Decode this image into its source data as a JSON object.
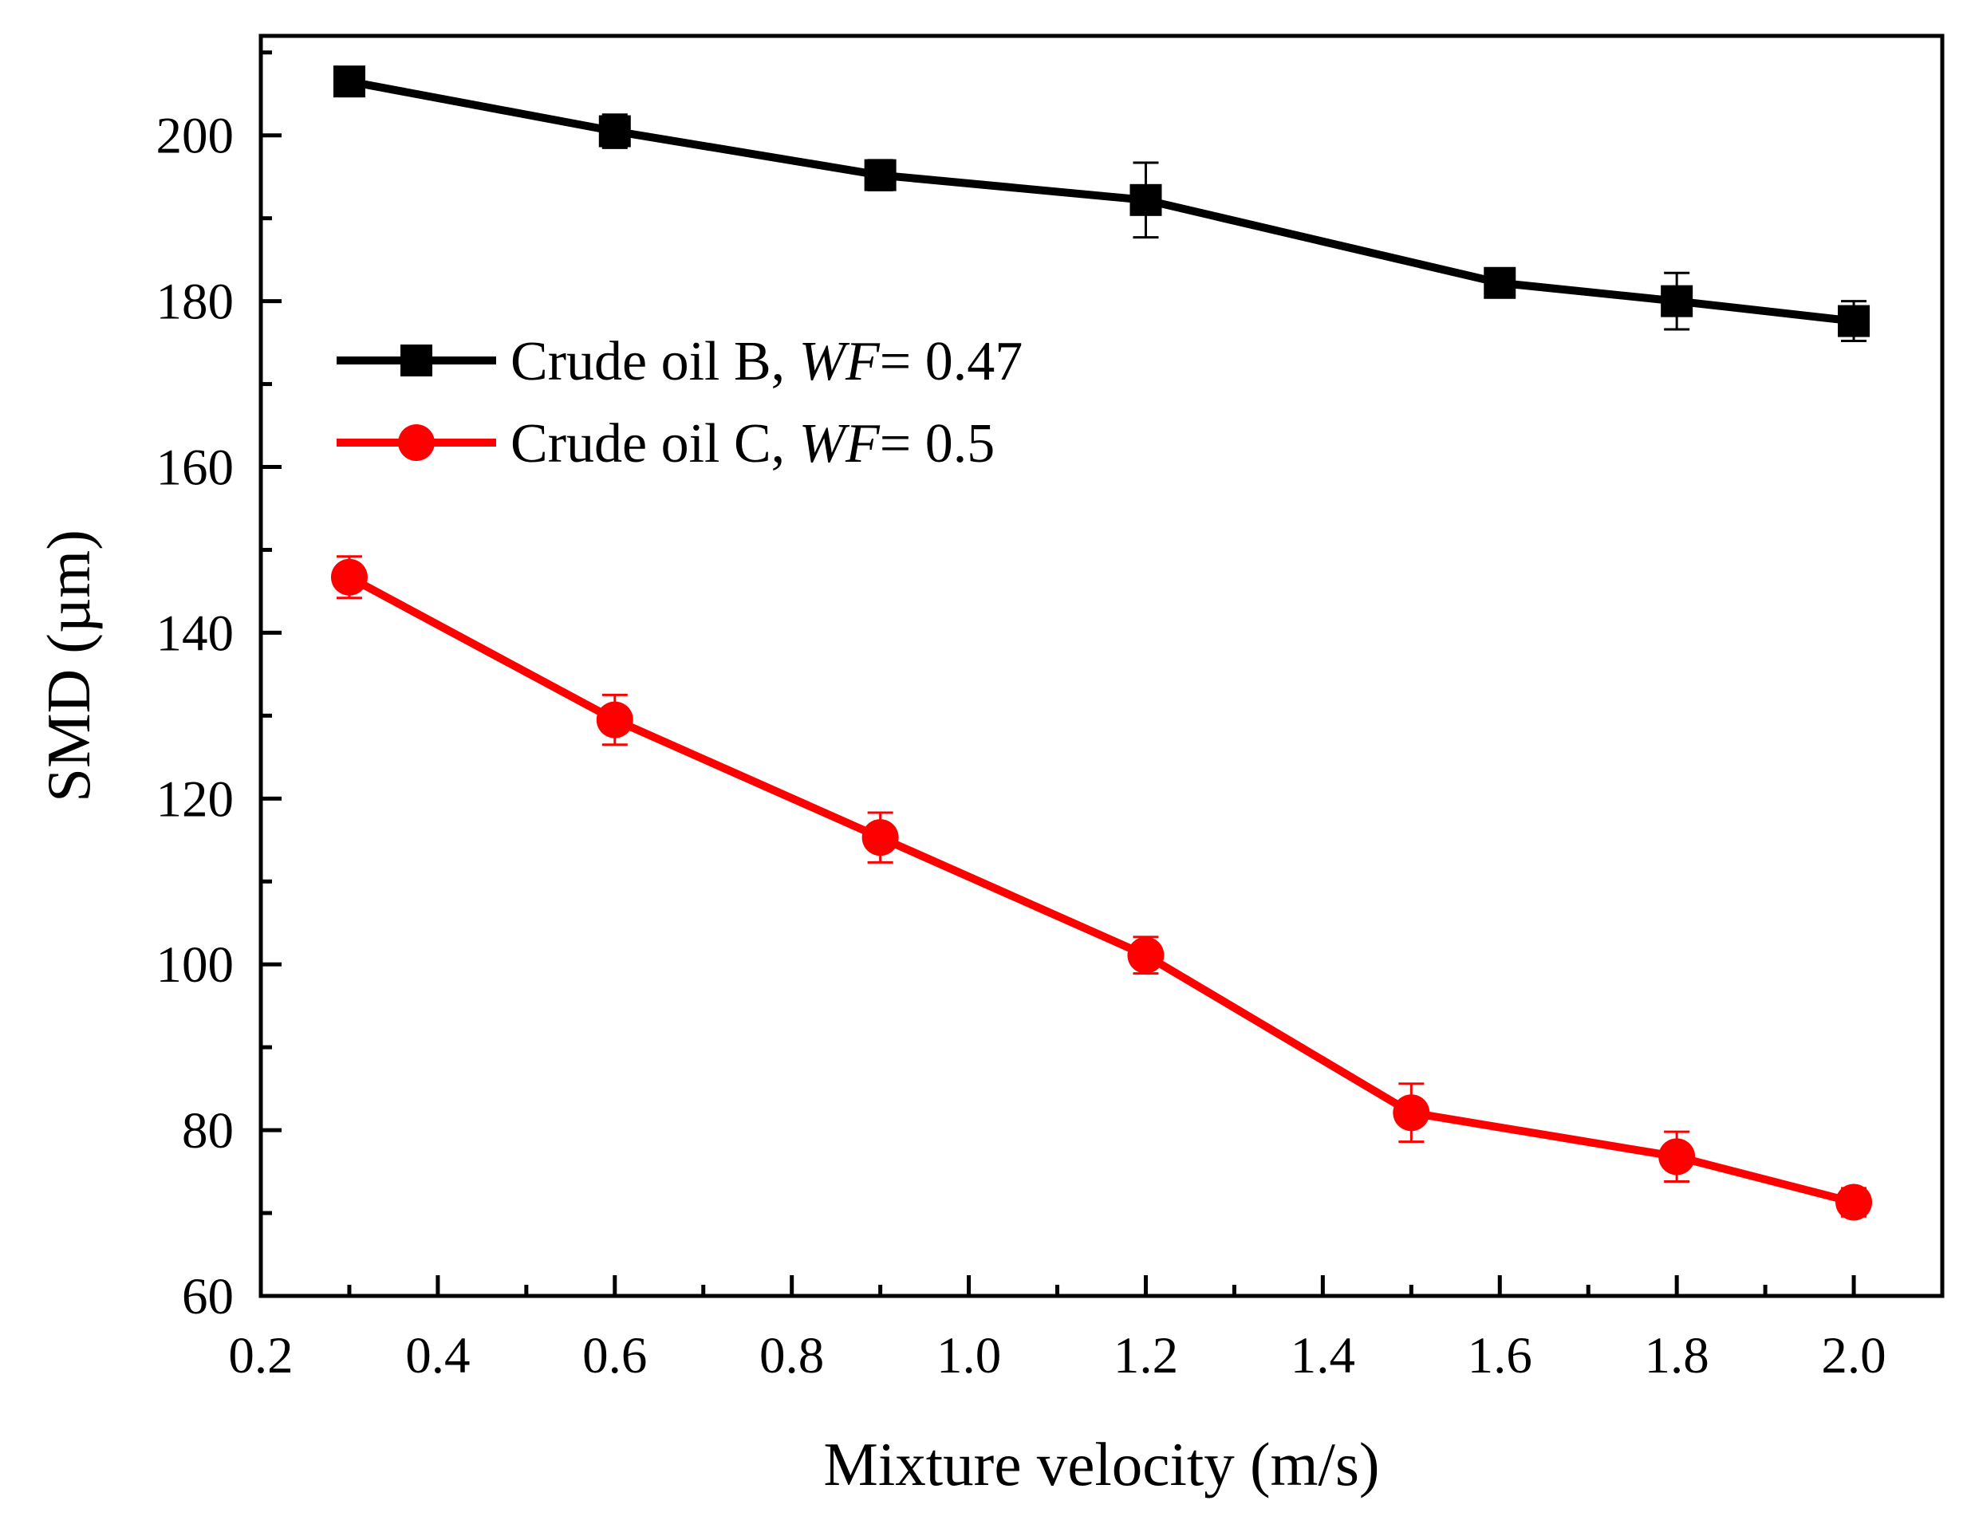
{
  "chart_data": {
    "type": "line",
    "title": "",
    "xlabel": "Mixture velocity (m/s)",
    "ylabel": "SMD (µm)",
    "xlim": [
      0.2,
      2.1
    ],
    "ylim": [
      60,
      212
    ],
    "x_ticks": [
      "0.2",
      "0.4",
      "0.6",
      "0.8",
      "1.0",
      "1.2",
      "1.4",
      "1.6",
      "1.8",
      "2.0"
    ],
    "y_ticks": [
      "60",
      "80",
      "100",
      "120",
      "140",
      "160",
      "180",
      "200"
    ],
    "grid": false,
    "legend_position": "top-left",
    "series": [
      {
        "name": "Crude oil B, WF= 0.47",
        "legend_prefix": "Crude oil B, ",
        "legend_italic": "WF",
        "legend_suffix": "= 0.47",
        "color": "#000000",
        "marker": "square",
        "x": [
          0.3,
          0.6,
          0.9,
          1.2,
          1.6,
          1.8,
          2.0
        ],
        "y": [
          206.5,
          200.5,
          195.2,
          192.2,
          182.2,
          180.0,
          177.6
        ],
        "error": [
          1.6,
          2.0,
          1.8,
          4.5,
          1.4,
          3.4,
          2.4
        ]
      },
      {
        "name": "Crude oil C, WF= 0.5",
        "legend_prefix": "Crude oil C, ",
        "legend_italic": "WF",
        "legend_suffix": "= 0.5",
        "color": "#ff0000",
        "marker": "circle",
        "x": [
          0.3,
          0.6,
          0.9,
          1.2,
          1.5,
          1.8,
          2.0
        ],
        "y": [
          146.7,
          129.5,
          115.3,
          101.1,
          82.1,
          76.8,
          71.3
        ],
        "error": [
          2.5,
          3.0,
          3.0,
          2.2,
          3.5,
          3.0,
          1.7
        ]
      }
    ]
  }
}
